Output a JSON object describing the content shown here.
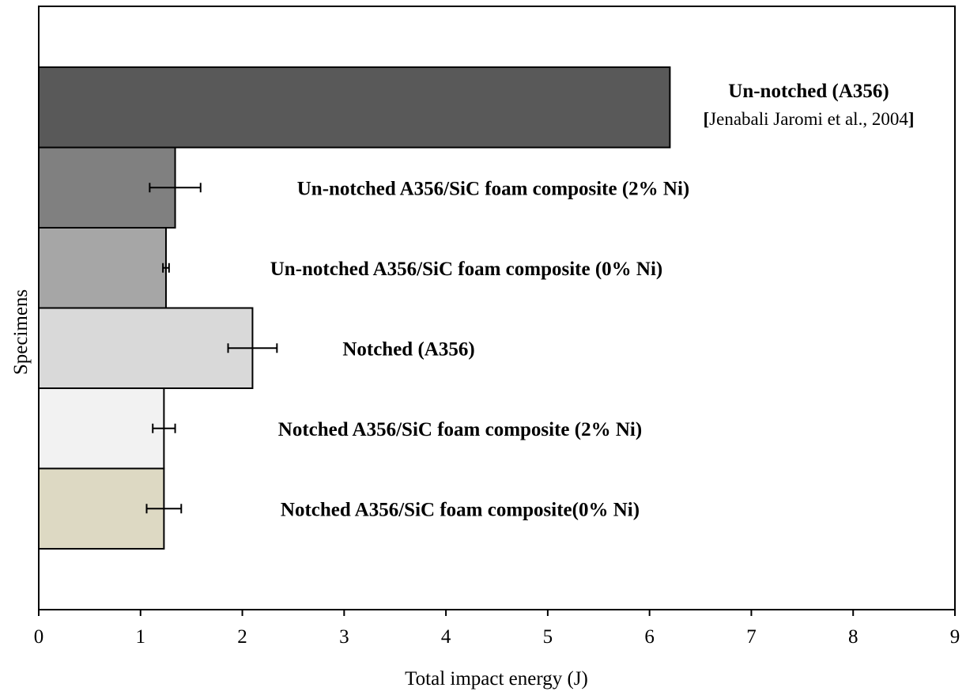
{
  "chart_data": {
    "type": "bar",
    "orientation": "horizontal",
    "xlabel": "Total impact energy (J)",
    "ylabel": "Specimens",
    "xlim": [
      0,
      9
    ],
    "x_ticks": [
      "0",
      "1",
      "2",
      "3",
      "4",
      "5",
      "6",
      "7",
      "8",
      "9"
    ],
    "grid": false,
    "bars": [
      {
        "label": "Un-notched (A356)",
        "sublabel": "Jenabali Jaromi et al., 2004",
        "value": 6.2,
        "error": null,
        "color": "#595959"
      },
      {
        "label": "Un-notched A356/SiC foam composite (2% Ni)",
        "value": 1.34,
        "error": 0.25,
        "color": "#808080"
      },
      {
        "label": "Un-notched A356/SiC foam composite (0% Ni)",
        "value": 1.25,
        "error": 0.03,
        "color": "#a6a6a6"
      },
      {
        "label": "Notched (A356)",
        "value": 2.1,
        "error": 0.24,
        "color": "#d9d9d9"
      },
      {
        "label": "Notched A356/SiC foam composite (2% Ni)",
        "value": 1.23,
        "error": 0.11,
        "color": "#f2f2f2"
      },
      {
        "label": "Notched A356/SiC foam composite(0% Ni)",
        "value": 1.23,
        "error": 0.17,
        "color": "#ddd9c3"
      }
    ]
  }
}
